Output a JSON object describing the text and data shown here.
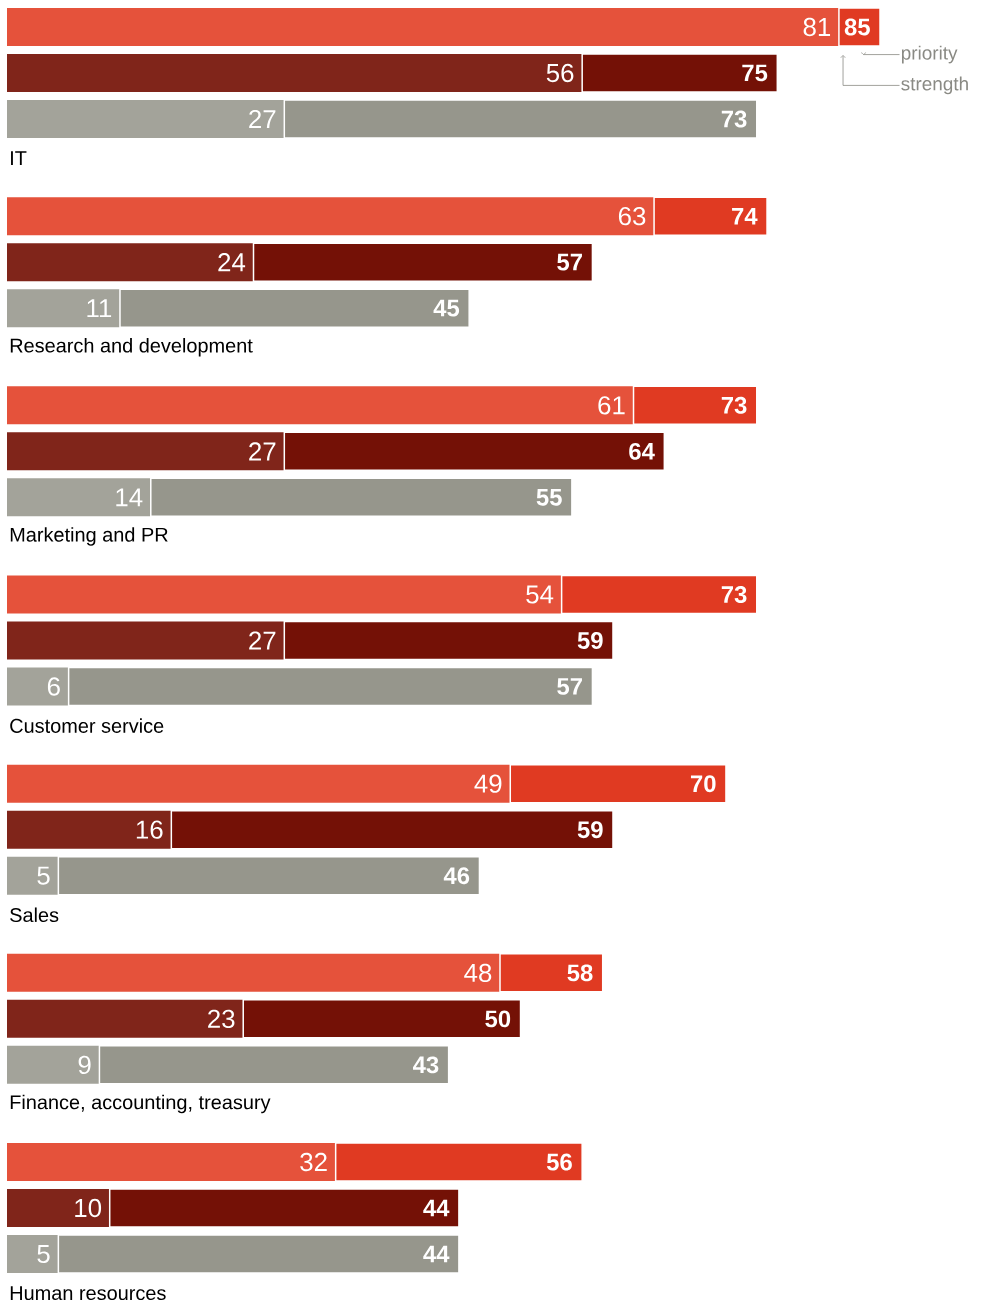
{
  "chart_data": [
    {
      "type": "bar",
      "orientation": "horizontal",
      "stacked": true,
      "title": "IT",
      "categories": [
        null,
        null,
        null
      ],
      "tick_labels": false,
      "annotations": [
        "priority",
        "strength"
      ],
      "totals": [
        "85",
        "75",
        "73"
      ],
      "series": [
        {
          "colors": [
            "#e5523b",
            "#80251a",
            "#a3a39a"
          ],
          "values": [
            81,
            56,
            27
          ],
          "value_labels": [
            "81",
            "56",
            "27"
          ]
        },
        {
          "colors": [
            "#e03a22",
            "#741106",
            "#96968c"
          ],
          "values": [
            4,
            19,
            46
          ]
        }
      ]
    },
    {
      "type": "bar",
      "orientation": "horizontal",
      "stacked": true,
      "title": "Research and development",
      "categories": [
        null,
        null,
        null
      ],
      "tick_labels": false,
      "totals": [
        "74",
        "57",
        "45"
      ],
      "series": [
        {
          "colors": [
            "#e5523b",
            "#80251a",
            "#a3a39a"
          ],
          "values": [
            63,
            24,
            11
          ],
          "value_labels": [
            "63",
            "24",
            "11"
          ]
        },
        {
          "colors": [
            "#e03a22",
            "#741106",
            "#96968c"
          ],
          "values": [
            11,
            33,
            34
          ]
        }
      ]
    },
    {
      "type": "bar",
      "orientation": "horizontal",
      "stacked": true,
      "title": "Marketing and PR",
      "categories": [
        null,
        null,
        null
      ],
      "tick_labels": false,
      "totals": [
        "73",
        "64",
        "55"
      ],
      "series": [
        {
          "colors": [
            "#e5523b",
            "#80251a",
            "#a3a39a"
          ],
          "values": [
            61,
            27,
            14
          ],
          "value_labels": [
            "61",
            "27",
            "14"
          ]
        },
        {
          "colors": [
            "#e03a22",
            "#741106",
            "#96968c"
          ],
          "values": [
            12,
            37,
            41
          ]
        }
      ]
    },
    {
      "type": "bar",
      "orientation": "horizontal",
      "stacked": true,
      "title": "Customer service",
      "categories": [
        null,
        null,
        null
      ],
      "tick_labels": false,
      "totals": [
        "73",
        "59",
        "57"
      ],
      "series": [
        {
          "colors": [
            "#e5523b",
            "#80251a",
            "#a3a39a"
          ],
          "values": [
            54,
            27,
            6
          ],
          "value_labels": [
            "54",
            "27",
            "6"
          ]
        },
        {
          "colors": [
            "#e03a22",
            "#741106",
            "#96968c"
          ],
          "values": [
            19,
            32,
            51
          ]
        }
      ]
    },
    {
      "type": "bar",
      "orientation": "horizontal",
      "stacked": true,
      "title": "Sales",
      "categories": [
        null,
        null,
        null
      ],
      "tick_labels": false,
      "totals": [
        "70",
        "59",
        "46"
      ],
      "series": [
        {
          "colors": [
            "#e5523b",
            "#80251a",
            "#a3a39a"
          ],
          "values": [
            49,
            16,
            5
          ],
          "value_labels": [
            "49",
            "16",
            "5"
          ]
        },
        {
          "colors": [
            "#e03a22",
            "#741106",
            "#96968c"
          ],
          "values": [
            21,
            43,
            41
          ]
        }
      ]
    },
    {
      "type": "bar",
      "orientation": "horizontal",
      "stacked": true,
      "title": "Finance, accounting, treasury",
      "categories": [
        null,
        null,
        null
      ],
      "tick_labels": false,
      "totals": [
        "58",
        "50",
        "43"
      ],
      "series": [
        {
          "colors": [
            "#e5523b",
            "#80251a",
            "#a3a39a"
          ],
          "values": [
            48,
            23,
            9
          ],
          "value_labels": [
            "48",
            "23",
            "9"
          ]
        },
        {
          "colors": [
            "#e03a22",
            "#741106",
            "#96968c"
          ],
          "values": [
            10,
            27,
            34
          ]
        }
      ]
    },
    {
      "type": "bar",
      "orientation": "horizontal",
      "stacked": true,
      "title": "Human resources",
      "categories": [
        null,
        null,
        null
      ],
      "tick_labels": false,
      "totals": [
        "56",
        "44",
        "44"
      ],
      "series": [
        {
          "colors": [
            "#e5523b",
            "#80251a",
            "#a3a39a"
          ],
          "values": [
            32,
            10,
            5
          ],
          "value_labels": [
            "32",
            "10",
            "5"
          ]
        },
        {
          "colors": [
            "#e03a22",
            "#741106",
            "#96968c"
          ],
          "values": [
            24,
            34,
            39
          ]
        }
      ]
    }
  ]
}
